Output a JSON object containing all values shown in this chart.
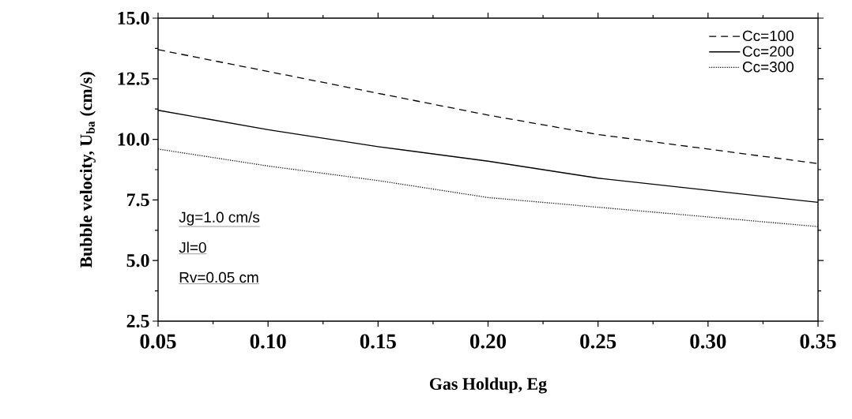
{
  "chart_data": {
    "type": "line",
    "xlabel": "Gas Holdup, Eg",
    "ylabel": "Bubble velocity, U$_{ba}$ (cm/s)",
    "x": [
      0.05,
      0.1,
      0.15,
      0.2,
      0.25,
      0.3,
      0.35
    ],
    "series": [
      {
        "name": "Cc=100",
        "color": "#000000",
        "line_style": "dashed",
        "values": [
          13.7,
          12.8,
          11.9,
          11.0,
          10.2,
          9.6,
          9.0
        ]
      },
      {
        "name": "Cc=200",
        "color": "#000000",
        "line_style": "solid",
        "values": [
          11.2,
          10.4,
          9.7,
          9.1,
          8.4,
          7.9,
          7.4
        ]
      },
      {
        "name": "Cc=300",
        "color": "#000000",
        "line_style": "dotted",
        "values": [
          9.6,
          8.9,
          8.3,
          7.6,
          7.2,
          6.8,
          6.4
        ]
      }
    ],
    "xlim": [
      0.05,
      0.35
    ],
    "ylim": [
      2.5,
      15.0
    ],
    "xticks": [
      {
        "value": 0.05,
        "label": "0.05"
      },
      {
        "value": 0.1,
        "label": "0.10"
      },
      {
        "value": 0.15,
        "label": "0.15"
      },
      {
        "value": 0.2,
        "label": "0.20"
      },
      {
        "value": 0.25,
        "label": "0.25"
      },
      {
        "value": 0.3,
        "label": "0.30"
      },
      {
        "value": 0.35,
        "label": "0.35"
      }
    ],
    "yticks": [
      {
        "value": 2.5,
        "label": "2.5"
      },
      {
        "value": 5.0,
        "label": "5.0"
      },
      {
        "value": 7.5,
        "label": "7.5"
      },
      {
        "value": 10.0,
        "label": "10.0"
      },
      {
        "value": 12.5,
        "label": "12.5"
      },
      {
        "value": 15.0,
        "label": "15.0"
      }
    ],
    "annotations": [
      "Jg=1.0 cm/s",
      "Jl=0",
      "Rv=0.05 cm"
    ],
    "legend": "top right",
    "marker": "none",
    "grid": false
  }
}
